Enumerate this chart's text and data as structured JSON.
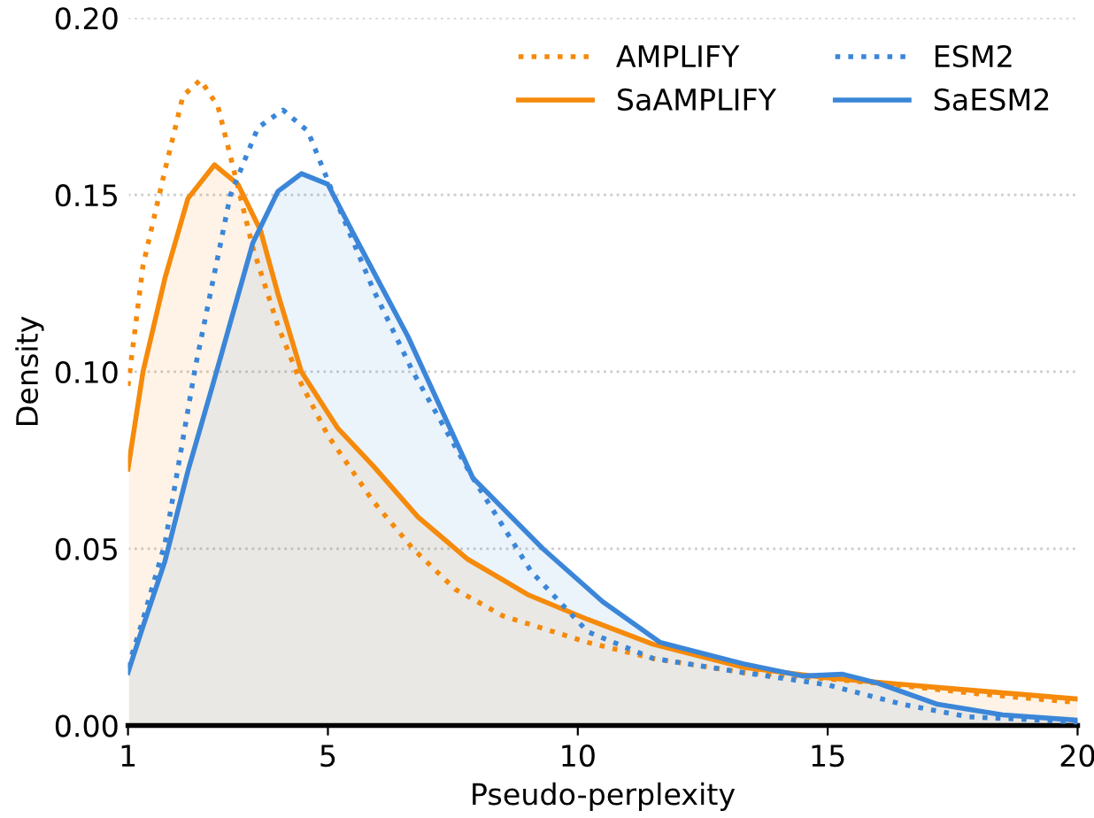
{
  "chart_data": {
    "type": "line",
    "xlabel": "Pseudo-perplexity",
    "ylabel": "Density",
    "xlim": [
      1,
      20
    ],
    "ylim": [
      0,
      0.2
    ],
    "xticks": [
      1,
      5,
      10,
      15,
      20
    ],
    "yticks": [
      {
        "value": 0,
        "label": "0.00"
      },
      {
        "value": 0.05,
        "label": "0.05"
      },
      {
        "value": 0.1,
        "label": "0.10"
      },
      {
        "value": 0.15,
        "label": "0.15"
      },
      {
        "value": 0.2,
        "label": "0.20"
      }
    ],
    "grid": "y",
    "legend": "top right",
    "marker": "none",
    "series": [
      {
        "name": "AMPLIFY",
        "line_style": "dotted",
        "color": "#f58a0b",
        "x": [
          1,
          1.3,
          1.74,
          2.1,
          2.45,
          2.8,
          3.1,
          3.5,
          4.0,
          4.47,
          5.0,
          5.9,
          6.7,
          7.55,
          8.5,
          10.2,
          11.5,
          13.3,
          14.3,
          16,
          18,
          20
        ],
        "values": [
          0.096,
          0.13,
          0.157,
          0.178,
          0.1825,
          0.175,
          0.158,
          0.135,
          0.113,
          0.0965,
          0.082,
          0.0635,
          0.05,
          0.0385,
          0.031,
          0.0235,
          0.019,
          0.015,
          0.014,
          0.012,
          0.009,
          0.0065
        ]
      },
      {
        "name": "SaAMPLIFY",
        "type": "area",
        "line_style": "solid",
        "color": "#f58a0b",
        "x": [
          1,
          1.3,
          1.74,
          2.2,
          2.73,
          3.2,
          3.65,
          4.0,
          4.47,
          5.2,
          5.9,
          6.8,
          7.8,
          9.0,
          10.2,
          11.5,
          13.3,
          15,
          17,
          20
        ],
        "values": [
          0.0725,
          0.1,
          0.1265,
          0.149,
          0.1585,
          0.153,
          0.14,
          0.122,
          0.1,
          0.084,
          0.0735,
          0.059,
          0.047,
          0.037,
          0.03,
          0.023,
          0.0165,
          0.0135,
          0.011,
          0.0075
        ]
      },
      {
        "name": "ESM2",
        "line_style": "dotted",
        "color": "#3b86d8",
        "x": [
          1,
          1.3,
          1.74,
          2.35,
          3.05,
          3.6,
          4.1,
          4.6,
          5.07,
          5.9,
          6.7,
          7.9,
          9.07,
          10.2,
          11.5,
          13.3,
          15,
          16.5,
          17.8,
          20
        ],
        "values": [
          0.0165,
          0.03,
          0.0515,
          0.1015,
          0.15,
          0.169,
          0.174,
          0.168,
          0.1515,
          0.1235,
          0.1,
          0.07,
          0.0435,
          0.0265,
          0.019,
          0.015,
          0.0115,
          0.006,
          0.0025,
          0.001
        ]
      },
      {
        "name": "SaESM2",
        "type": "area",
        "line_style": "solid",
        "color": "#3b86d8",
        "x": [
          1,
          1.3,
          1.74,
          2.2,
          2.7,
          3.5,
          4.0,
          4.47,
          5.0,
          5.53,
          6.6,
          7.9,
          9.3,
          10.5,
          11.65,
          13.3,
          14.5,
          15.3,
          16,
          17.2,
          18.5,
          20
        ],
        "values": [
          0.015,
          0.028,
          0.0465,
          0.072,
          0.0965,
          0.1365,
          0.151,
          0.156,
          0.153,
          0.1385,
          0.11,
          0.07,
          0.05,
          0.035,
          0.0235,
          0.0175,
          0.014,
          0.0145,
          0.012,
          0.006,
          0.003,
          0.0015
        ]
      }
    ]
  }
}
